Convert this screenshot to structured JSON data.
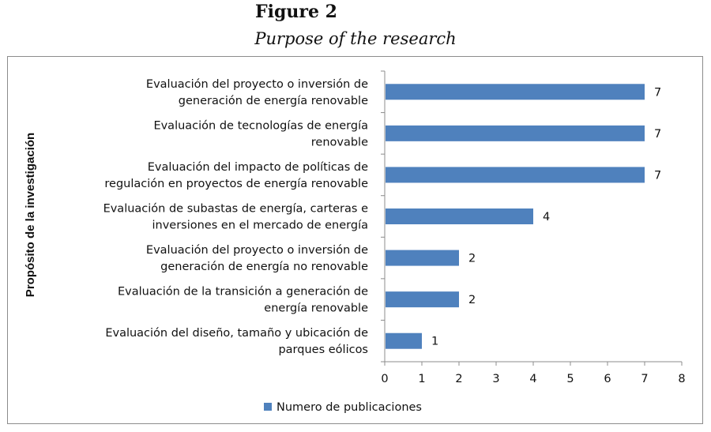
{
  "figure": {
    "title": "Figure 2",
    "subtitle": "Purpose of the research"
  },
  "chart_data": {
    "type": "bar",
    "orientation": "horizontal",
    "ylabel": "Propósito de la investigación",
    "xlabel": "",
    "xlim": [
      0,
      8
    ],
    "xticks": [
      0,
      1,
      2,
      3,
      4,
      5,
      6,
      7,
      8
    ],
    "grid": false,
    "legend_position": "bottom",
    "bar_color": "#4f81bd",
    "categories": [
      [
        "Evaluación del proyecto o inversión de",
        "generación de energía renovable"
      ],
      [
        "Evaluación de tecnologías de energía",
        "renovable"
      ],
      [
        "Evaluación del impacto de políticas de",
        "regulación en proyectos de energía renovable"
      ],
      [
        "Evaluación de subastas de energía, carteras e",
        "inversiones en el mercado de energía"
      ],
      [
        "Evaluación del proyecto o inversión de",
        "generación de energía no renovable"
      ],
      [
        "Evaluación de la transición a generación de",
        "energía renovable"
      ],
      [
        "Evaluación del diseño, tamaño y ubicación de",
        "parques eólicos"
      ]
    ],
    "series": [
      {
        "name": "Numero de publicaciones",
        "values": [
          7,
          7,
          7,
          4,
          2,
          2,
          1
        ]
      }
    ]
  }
}
